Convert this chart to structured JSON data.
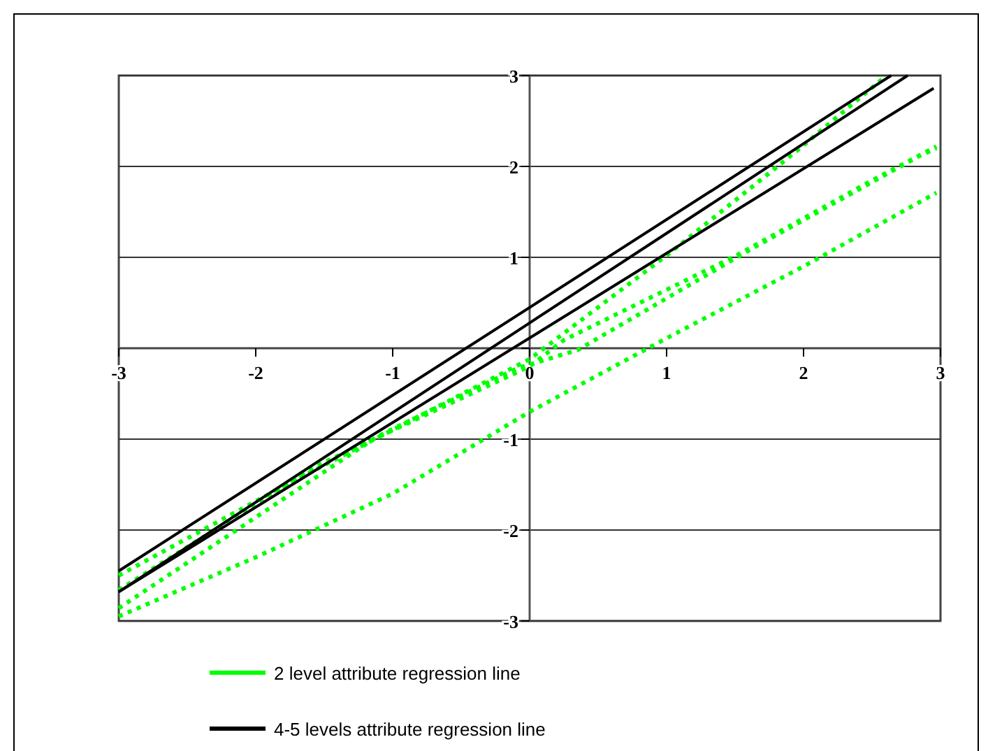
{
  "chart_data": {
    "type": "line",
    "xlim": [
      -3,
      3
    ],
    "ylim": [
      -3,
      3
    ],
    "xticks": [
      -3,
      -2,
      -1,
      0,
      1,
      2,
      3
    ],
    "yticks": [
      -3,
      -2,
      -1,
      {
        "value": 0,
        "label": null
      },
      1,
      2,
      3
    ],
    "grid": "y",
    "legend": "bottom",
    "marker": "none",
    "series": [
      {
        "name": "2 level attribute regression line",
        "color": "#00ff00",
        "line_style": "dotted",
        "x": [
          -3,
          -1.8,
          0,
          1,
          1.95,
          2.59
        ],
        "values": [
          -2.5,
          -1.52,
          -0.12,
          1.02,
          2.17,
          2.98
        ]
      },
      {
        "color": "#00ff00",
        "line_style": "dotted",
        "x": [
          -3,
          -1.55,
          0,
          0.25,
          1.51,
          2.48,
          2.97
        ],
        "values": [
          -2.66,
          -1.29,
          -0.2,
          0.09,
          1.02,
          1.83,
          2.22
        ]
      },
      {
        "color": "#00ff00",
        "line_style": "dotted",
        "x": [
          -3,
          -1.11,
          -0.09,
          0.35,
          1.64,
          2.84,
          2.97
        ],
        "values": [
          -2.86,
          -0.97,
          -0.22,
          -0.02,
          1.11,
          2.11,
          2.2
        ]
      },
      {
        "color": "#00ff00",
        "line_style": "dotted",
        "x": [
          -3,
          -2,
          -1,
          0,
          1,
          2,
          2.97
        ],
        "values": [
          -2.95,
          -2.3,
          -1.6,
          -0.7,
          0.11,
          0.9,
          1.71
        ]
      },
      {
        "name": "4-5 levels attribute regression line",
        "color": "#000000",
        "line_style": "solid",
        "x": [
          -3,
          2.64
        ],
        "values": [
          -2.45,
          3
        ]
      },
      {
        "color": "#000000",
        "line_style": "solid",
        "x": [
          -3,
          2.76
        ],
        "values": [
          -2.68,
          3
        ]
      },
      {
        "color": "#000000",
        "line_style": "solid",
        "x": [
          -3,
          2.95
        ],
        "values": [
          -2.68,
          2.86
        ]
      }
    ]
  }
}
